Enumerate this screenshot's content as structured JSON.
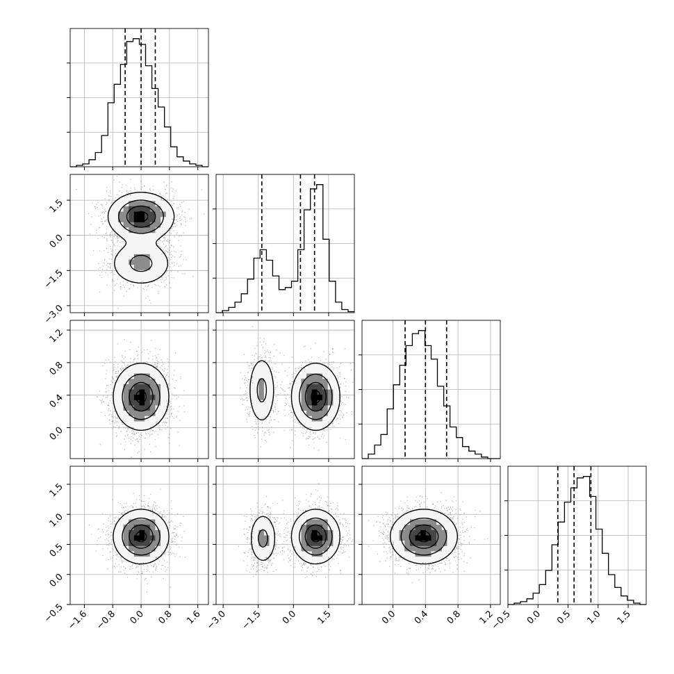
{
  "chart_data": {
    "type": "corner",
    "grid": true,
    "colors": {
      "line": "#000000",
      "grid": "#b0b0b0",
      "scatter": "#7f7f7f",
      "density_dark": "#000000"
    },
    "variables": [
      {
        "range": [
          -2.0,
          1.9
        ],
        "ticks": [
          "−1.6",
          "−0.8",
          "0.0",
          "0.8",
          "1.6"
        ],
        "tick_values": [
          -1.6,
          -0.8,
          0.0,
          0.8,
          1.6
        ]
      },
      {
        "range": [
          -3.3,
          2.6
        ],
        "ticks": [
          "−3.0",
          "−1.5",
          "0.0",
          "1.5"
        ],
        "tick_values": [
          -3.0,
          -1.5,
          0.0,
          1.5
        ]
      },
      {
        "range": [
          -0.38,
          1.32
        ],
        "ticks": [
          "0.0",
          "0.4",
          "0.8",
          "1.2"
        ],
        "tick_values": [
          0.0,
          0.4,
          0.8,
          1.2
        ]
      },
      {
        "range": [
          -0.5,
          1.8
        ],
        "ticks": [
          "−0.5",
          "0.0",
          "0.5",
          "1.0",
          "1.5"
        ],
        "tick_values": [
          -0.5,
          0.0,
          0.5,
          1.0,
          1.5
        ]
      }
    ],
    "diagonal_histograms": [
      {
        "bin_edges": [
          -1.8,
          1.8
        ],
        "counts": [
          0,
          1,
          2,
          5,
          10,
          22,
          45,
          58,
          72,
          88,
          90,
          86,
          71,
          55,
          42,
          28,
          14,
          7,
          4,
          2,
          1,
          0
        ],
        "quantile_lines": [
          -0.45,
          0.0,
          0.4
        ]
      },
      {
        "bin_edges": [
          -3.3,
          2.6
        ],
        "counts": [
          0,
          2,
          5,
          10,
          18,
          32,
          52,
          60,
          50,
          35,
          22,
          24,
          30,
          60,
          98,
          118,
          122,
          70,
          30,
          10,
          3,
          1
        ],
        "quantile_lines": [
          -1.35,
          0.3,
          0.9
        ]
      },
      {
        "bin_edges": [
          -0.38,
          1.32
        ],
        "counts": [
          0,
          3,
          9,
          16,
          33,
          49,
          62,
          75,
          83,
          85,
          75,
          66,
          48,
          35,
          21,
          14,
          8,
          5,
          3,
          1,
          0,
          0
        ],
        "quantile_lines": [
          0.15,
          0.4,
          0.66
        ]
      },
      {
        "bin_edges": [
          -0.5,
          1.8
        ],
        "counts": [
          0,
          1,
          2,
          4,
          8,
          14,
          24,
          42,
          58,
          72,
          82,
          89,
          90,
          76,
          53,
          36,
          21,
          12,
          6,
          3,
          1,
          0
        ],
        "quantile_lines": [
          0.33,
          0.6,
          0.88
        ]
      }
    ],
    "pair_panels": [
      {
        "row": 1,
        "col": 0,
        "modes": [
          {
            "x": 0.0,
            "y": 0.8,
            "sx": 0.45,
            "sy": 0.5,
            "w": 0.68
          },
          {
            "x": 0.0,
            "y": -1.2,
            "sx": 0.45,
            "sy": 0.5,
            "w": 0.32
          }
        ]
      },
      {
        "row": 2,
        "col": 0,
        "modes": [
          {
            "x": 0.0,
            "y": 0.38,
            "sx": 0.38,
            "sy": 0.2,
            "w": 1.0
          }
        ]
      },
      {
        "row": 2,
        "col": 1,
        "modes": [
          {
            "x": -1.35,
            "y": 0.46,
            "sx": 0.3,
            "sy": 0.22,
            "w": 0.32
          },
          {
            "x": 0.95,
            "y": 0.38,
            "sx": 0.5,
            "sy": 0.2,
            "w": 0.68
          }
        ]
      },
      {
        "row": 3,
        "col": 0,
        "modes": [
          {
            "x": 0.0,
            "y": 0.63,
            "sx": 0.38,
            "sy": 0.22,
            "w": 1.0
          }
        ]
      },
      {
        "row": 3,
        "col": 1,
        "modes": [
          {
            "x": -1.3,
            "y": 0.6,
            "sx": 0.3,
            "sy": 0.22,
            "w": 0.32
          },
          {
            "x": 0.95,
            "y": 0.63,
            "sx": 0.5,
            "sy": 0.22,
            "w": 0.68
          }
        ]
      },
      {
        "row": 3,
        "col": 2,
        "modes": [
          {
            "x": 0.38,
            "y": 0.63,
            "sx": 0.2,
            "sy": 0.22,
            "w": 1.0
          }
        ]
      }
    ]
  }
}
